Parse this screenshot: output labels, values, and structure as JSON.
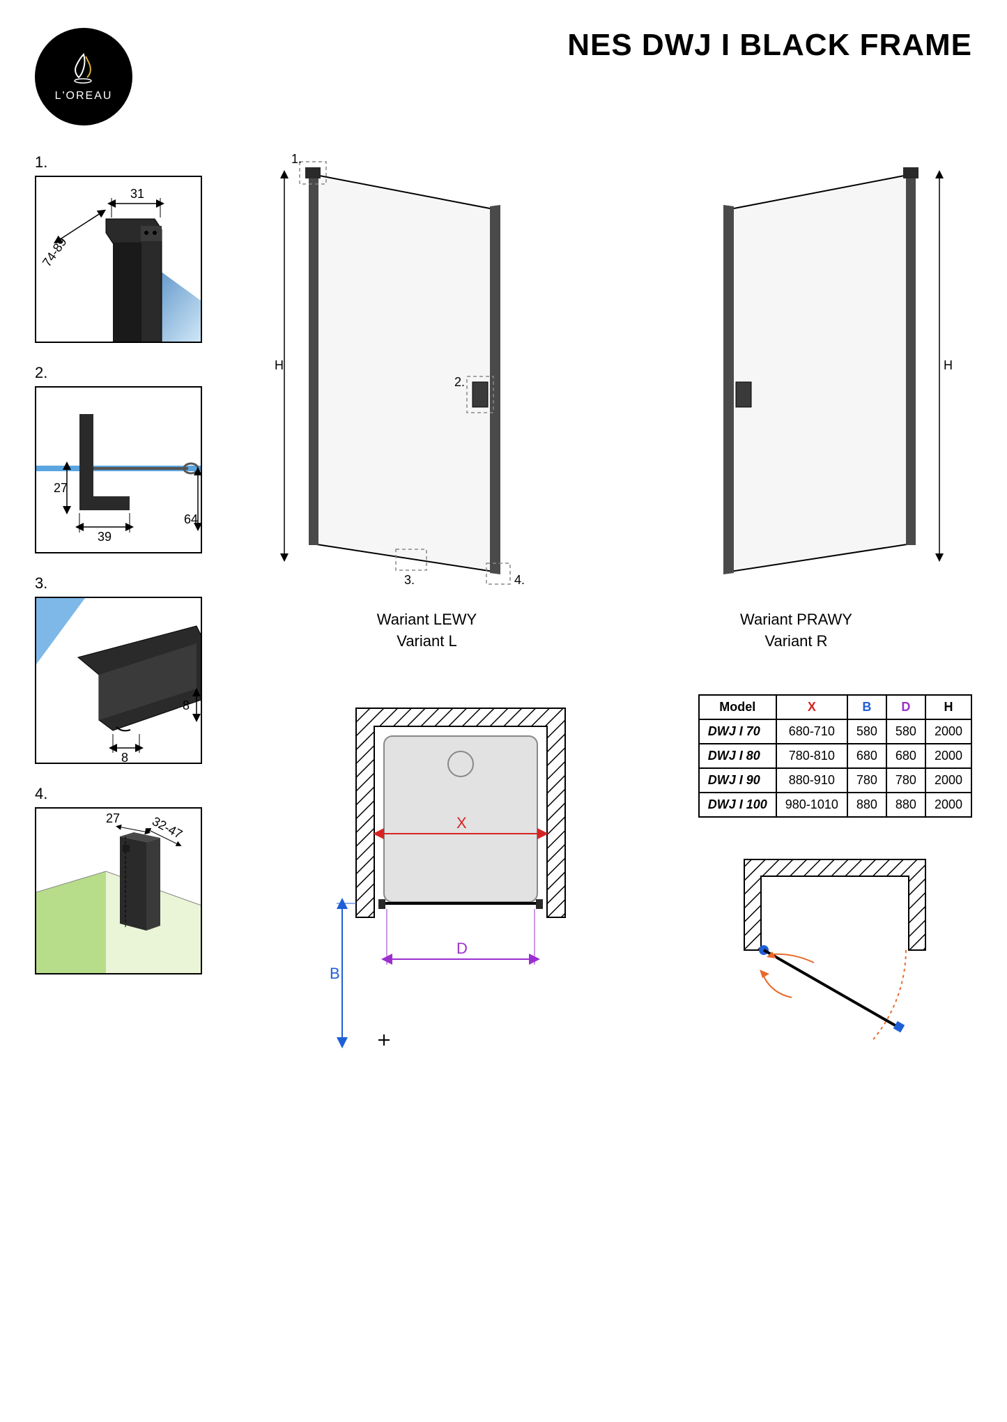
{
  "brand": "L'OREAU",
  "title": "NES DWJ I BLACK FRAME",
  "colors": {
    "black": "#000000",
    "white": "#ffffff",
    "glass_blue_light": "#7db8e8",
    "glass_blue_dark": "#2d6fb3",
    "glass_green": "#b8dd8a",
    "grey_tray": "#e2e2e2",
    "grey_light": "#f0f0f0",
    "dim_red": "#d62424",
    "dim_blue": "#1f5fd6",
    "dim_purple": "#9b2fcf",
    "swing_orange": "#e86a2a",
    "dash": "#888888"
  },
  "details": [
    {
      "num": "1.",
      "dims": {
        "width": "31",
        "range": "74-89"
      }
    },
    {
      "num": "2.",
      "dims": {
        "h": "27",
        "w": "39",
        "ext": "64"
      }
    },
    {
      "num": "3.",
      "dims": {
        "a": "8",
        "b": "8"
      }
    },
    {
      "num": "4.",
      "dims": {
        "w": "27",
        "range": "32-47"
      }
    }
  ],
  "door_left": {
    "label1": "Wariant LEWY",
    "label2": "Variant L"
  },
  "door_right": {
    "label1": "Wariant PRAWY",
    "label2": "Variant R"
  },
  "door_axis_h": "H",
  "callouts": [
    "1.",
    "2.",
    "3.",
    "4."
  ],
  "plan": {
    "x": "X",
    "b": "B",
    "d": "D"
  },
  "table": {
    "headers": [
      "Model",
      "X",
      "B",
      "D",
      "H"
    ],
    "header_colors": [
      "#000000",
      "#d62424",
      "#1f5fd6",
      "#9b2fcf",
      "#000000"
    ],
    "rows": [
      [
        "DWJ I 70",
        "680-710",
        "580",
        "580",
        "2000"
      ],
      [
        "DWJ I 80",
        "780-810",
        "680",
        "680",
        "2000"
      ],
      [
        "DWJ I 90",
        "880-910",
        "780",
        "780",
        "2000"
      ],
      [
        "DWJ I 100",
        "980-1010",
        "880",
        "880",
        "2000"
      ]
    ]
  }
}
